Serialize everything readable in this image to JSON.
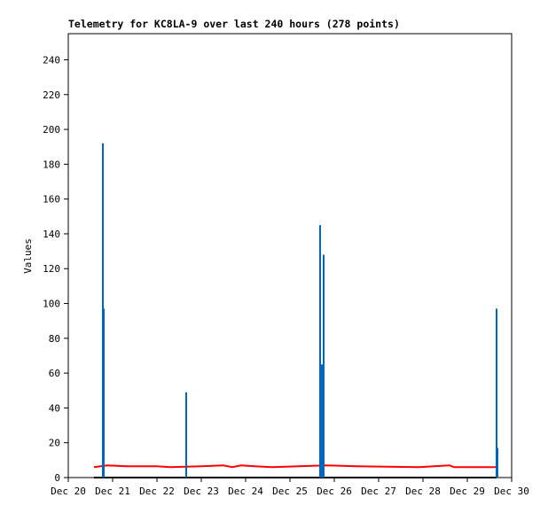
{
  "chart_data": {
    "type": "line",
    "title": "Telemetry for KC8LA-9 over last 240 hours (278 points)",
    "y_label": "Values",
    "xlim": [
      0,
      10
    ],
    "ylim": [
      0,
      255
    ],
    "xticks": [
      {
        "value": 0,
        "label": "Dec 20"
      },
      {
        "value": 1,
        "label": "Dec 21"
      },
      {
        "value": 2,
        "label": "Dec 22"
      },
      {
        "value": 3,
        "label": "Dec 23"
      },
      {
        "value": 4,
        "label": "Dec 24"
      },
      {
        "value": 5,
        "label": "Dec 25"
      },
      {
        "value": 6,
        "label": "Dec 26"
      },
      {
        "value": 7,
        "label": "Dec 27"
      },
      {
        "value": 8,
        "label": "Dec 28"
      },
      {
        "value": 9,
        "label": "Dec 29"
      },
      {
        "value": 10,
        "label": "Dec 30"
      }
    ],
    "yticks": [
      0,
      20,
      40,
      60,
      80,
      100,
      120,
      140,
      160,
      180,
      200,
      220,
      240
    ],
    "series": [
      {
        "color": "#ff0000",
        "style": "line",
        "x": [
          0.58,
          0.88,
          1.3,
          2.0,
          2.3,
          3.0,
          3.5,
          3.7,
          3.9,
          4.2,
          4.6,
          5.8,
          6.5,
          7.9,
          8.6,
          8.7,
          9.66
        ],
        "values": [
          6,
          7,
          6.5,
          6.5,
          6,
          6.5,
          7,
          6,
          7,
          6.5,
          6,
          7,
          6.5,
          6,
          7,
          6,
          6
        ]
      },
      {
        "color": "#000000",
        "style": "line",
        "x": [
          0.58,
          9.66
        ],
        "values": [
          0,
          0
        ]
      },
      {
        "color": "#0066bb",
        "style": "impulse",
        "x": [
          0.78,
          0.8,
          2.66,
          5.68,
          5.72,
          5.76,
          9.66,
          9.68
        ],
        "values": [
          192,
          97,
          49,
          145,
          65,
          128,
          97,
          17
        ]
      }
    ]
  }
}
